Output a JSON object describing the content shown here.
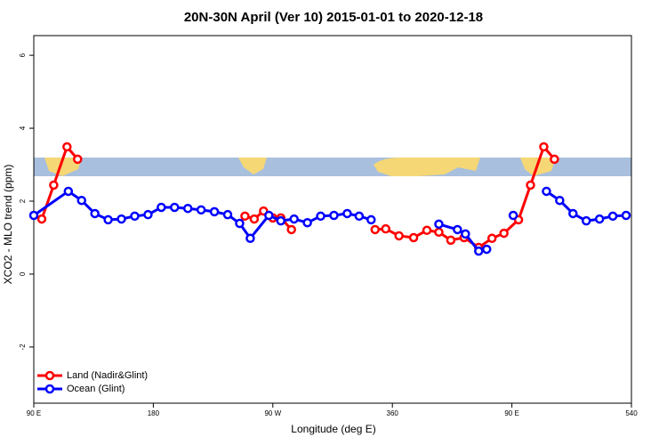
{
  "chart_data": {
    "type": "line",
    "title": "20N-30N April (Ver 10)   2015-01-01 to 2020-12-18",
    "x_label": "Longitude (deg E)",
    "y_label": "XCO2 - MLO trend (ppm)",
    "xlim": [
      90,
      540
    ],
    "xticks": [
      {
        "value": 90,
        "label": "90 E"
      },
      180,
      {
        "value": 270,
        "label": "90 W"
      },
      360,
      {
        "value": 450,
        "label": "90 E"
      },
      540
    ],
    "ylim": [
      -3.54,
      6.54
    ],
    "yticks": [
      -2,
      0,
      2,
      4,
      6
    ],
    "legend": "bottom-left",
    "series": [
      {
        "name": "Land (Nadir&Glint)",
        "color": "#ff0000",
        "x": [
          96,
          105,
          115,
          123,
          null,
          249,
          256,
          263,
          270,
          276,
          284,
          null,
          347,
          355,
          365,
          376,
          386,
          395,
          404,
          414,
          425,
          435,
          444,
          455,
          464,
          474,
          482
        ],
        "values": [
          1.51,
          2.44,
          3.49,
          3.15,
          null,
          1.59,
          1.51,
          1.73,
          1.54,
          1.54,
          1.22,
          null,
          1.22,
          1.24,
          1.05,
          1.0,
          1.2,
          1.15,
          0.93,
          1.0,
          0.73,
          0.98,
          1.12,
          1.49,
          2.44,
          3.49,
          3.15
        ]
      },
      {
        "name": "Ocean (Glint)",
        "color": "#0000ff",
        "x": [
          90,
          116,
          126,
          136,
          146,
          156,
          166,
          176,
          186,
          196,
          206,
          216,
          226,
          236,
          245,
          253,
          267,
          276,
          286,
          296,
          306,
          316,
          326,
          335,
          344,
          null,
          395,
          409,
          415,
          425,
          431,
          null,
          451,
          null,
          476,
          486,
          496,
          506,
          516,
          526,
          536
        ],
        "values": [
          1.61,
          2.27,
          2.02,
          1.66,
          1.49,
          1.51,
          1.59,
          1.63,
          1.83,
          1.83,
          1.8,
          1.76,
          1.71,
          1.63,
          1.39,
          0.98,
          1.61,
          1.46,
          1.51,
          1.41,
          1.59,
          1.61,
          1.66,
          1.59,
          1.49,
          null,
          1.37,
          1.22,
          1.1,
          0.63,
          0.68,
          null,
          1.61,
          null,
          2.27,
          2.02,
          1.66,
          1.46,
          1.51,
          1.59,
          1.61
        ]
      }
    ]
  }
}
